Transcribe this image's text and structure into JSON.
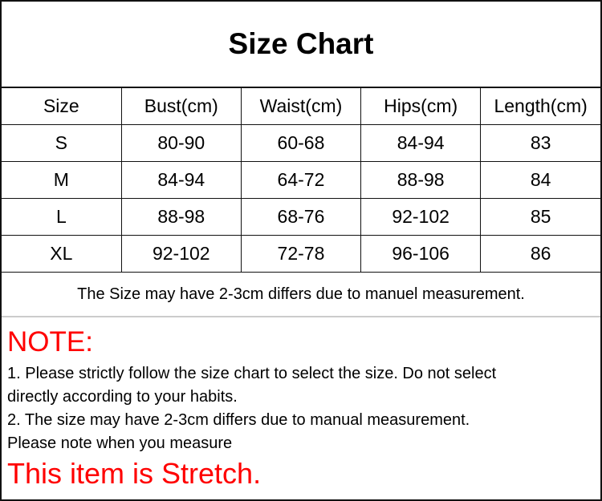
{
  "title": "Size Chart",
  "table": {
    "headers": [
      "Size",
      "Bust(cm)",
      "Waist(cm)",
      "Hips(cm)",
      "Length(cm)"
    ],
    "rows": [
      [
        "S",
        "80-90",
        "60-68",
        "84-94",
        "83"
      ],
      [
        "M",
        "84-94",
        "64-72",
        "88-98",
        "84"
      ],
      [
        "L",
        "88-98",
        "68-76",
        "92-102",
        "85"
      ],
      [
        "XL",
        "92-102",
        "72-78",
        "96-106",
        "86"
      ]
    ]
  },
  "footer_note": "The Size may have 2-3cm differs due to manuel measurement.",
  "note": {
    "heading": "NOTE:",
    "lines": [
      "1. Please strictly follow the size chart to select the size. Do not select",
      "directly according to your habits.",
      "2. The size may have 2-3cm differs due to manual measurement.",
      "Please note when you measure"
    ],
    "stretch": "This item is Stretch.",
    "accent_color": "#ff0000"
  }
}
